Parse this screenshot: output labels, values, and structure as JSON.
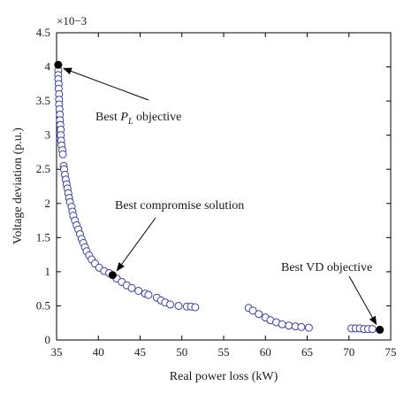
{
  "chart_data": {
    "type": "scatter",
    "xlabel": "Real power loss (kW)",
    "ylabel": "Voltage deviation (p.u.)",
    "y_multiplier_label": "×10−3",
    "xlim": [
      35,
      75
    ],
    "ylim": [
      0,
      4.5
    ],
    "x_ticks": [
      35,
      40,
      45,
      50,
      55,
      60,
      65,
      70,
      75
    ],
    "y_ticks": [
      0,
      0.5,
      1,
      1.5,
      2,
      2.5,
      3,
      3.5,
      4,
      4.5
    ],
    "grid": false,
    "colors": {
      "marker_edge": "#3b3f9a",
      "marker_face": "#ffffff",
      "highlight": "#000000",
      "axis": "#000000"
    },
    "pareto_front": [
      [
        35.2,
        3.95
      ],
      [
        35.2,
        3.88
      ],
      [
        35.2,
        3.82
      ],
      [
        35.25,
        3.75
      ],
      [
        35.25,
        3.68
      ],
      [
        35.3,
        3.6
      ],
      [
        35.3,
        3.52
      ],
      [
        35.3,
        3.45
      ],
      [
        35.35,
        3.38
      ],
      [
        35.4,
        3.3
      ],
      [
        35.4,
        3.22
      ],
      [
        35.45,
        3.15
      ],
      [
        35.5,
        3.08
      ],
      [
        35.5,
        3.0
      ],
      [
        35.55,
        2.92
      ],
      [
        35.6,
        2.85
      ],
      [
        35.7,
        2.78
      ],
      [
        35.75,
        2.72
      ],
      [
        35.85,
        2.55
      ],
      [
        35.9,
        2.5
      ],
      [
        36.0,
        2.42
      ],
      [
        36.1,
        2.35
      ],
      [
        36.2,
        2.28
      ],
      [
        36.3,
        2.22
      ],
      [
        36.4,
        2.15
      ],
      [
        36.5,
        2.08
      ],
      [
        36.6,
        2.02
      ],
      [
        36.8,
        1.95
      ],
      [
        36.9,
        1.88
      ],
      [
        37.0,
        1.82
      ],
      [
        37.2,
        1.75
      ],
      [
        37.4,
        1.68
      ],
      [
        37.6,
        1.62
      ],
      [
        37.8,
        1.55
      ],
      [
        38.0,
        1.48
      ],
      [
        38.2,
        1.42
      ],
      [
        38.4,
        1.36
      ],
      [
        38.6,
        1.3
      ],
      [
        38.9,
        1.24
      ],
      [
        39.2,
        1.18
      ],
      [
        39.6,
        1.12
      ],
      [
        40.1,
        1.06
      ],
      [
        40.7,
        1.01
      ],
      [
        41.3,
        0.98
      ],
      [
        42.2,
        0.9
      ],
      [
        42.8,
        0.85
      ],
      [
        43.4,
        0.8
      ],
      [
        44.0,
        0.76
      ],
      [
        44.8,
        0.72
      ],
      [
        45.6,
        0.68
      ],
      [
        46.0,
        0.66
      ],
      [
        47.0,
        0.62
      ],
      [
        47.5,
        0.58
      ],
      [
        48.0,
        0.55
      ],
      [
        48.6,
        0.52
      ],
      [
        49.6,
        0.5
      ],
      [
        50.6,
        0.49
      ],
      [
        51.1,
        0.49
      ],
      [
        51.6,
        0.48
      ],
      [
        58.0,
        0.47
      ],
      [
        58.5,
        0.43
      ],
      [
        59.2,
        0.38
      ],
      [
        60.0,
        0.33
      ],
      [
        60.6,
        0.29
      ],
      [
        61.3,
        0.26
      ],
      [
        62.0,
        0.23
      ],
      [
        62.8,
        0.21
      ],
      [
        63.6,
        0.2
      ],
      [
        64.3,
        0.19
      ],
      [
        65.2,
        0.18
      ],
      [
        70.3,
        0.17
      ],
      [
        70.8,
        0.17
      ],
      [
        71.3,
        0.17
      ],
      [
        71.8,
        0.16
      ],
      [
        72.3,
        0.16
      ],
      [
        72.8,
        0.16
      ]
    ],
    "highlighted_points": [
      {
        "x": 35.2,
        "y": 4.03,
        "label": "Best P_L objective"
      },
      {
        "x": 41.7,
        "y": 0.95,
        "label": "Best compromise solution"
      },
      {
        "x": 73.7,
        "y": 0.15,
        "label": "Best VD objective"
      }
    ],
    "annotations": {
      "best_pl_prefix": "Best ",
      "best_pl_symbol": "P",
      "best_pl_subscript": "L",
      "best_pl_suffix": " objective",
      "compromise": "Best compromise solution",
      "best_vd": "Best VD objective"
    }
  }
}
